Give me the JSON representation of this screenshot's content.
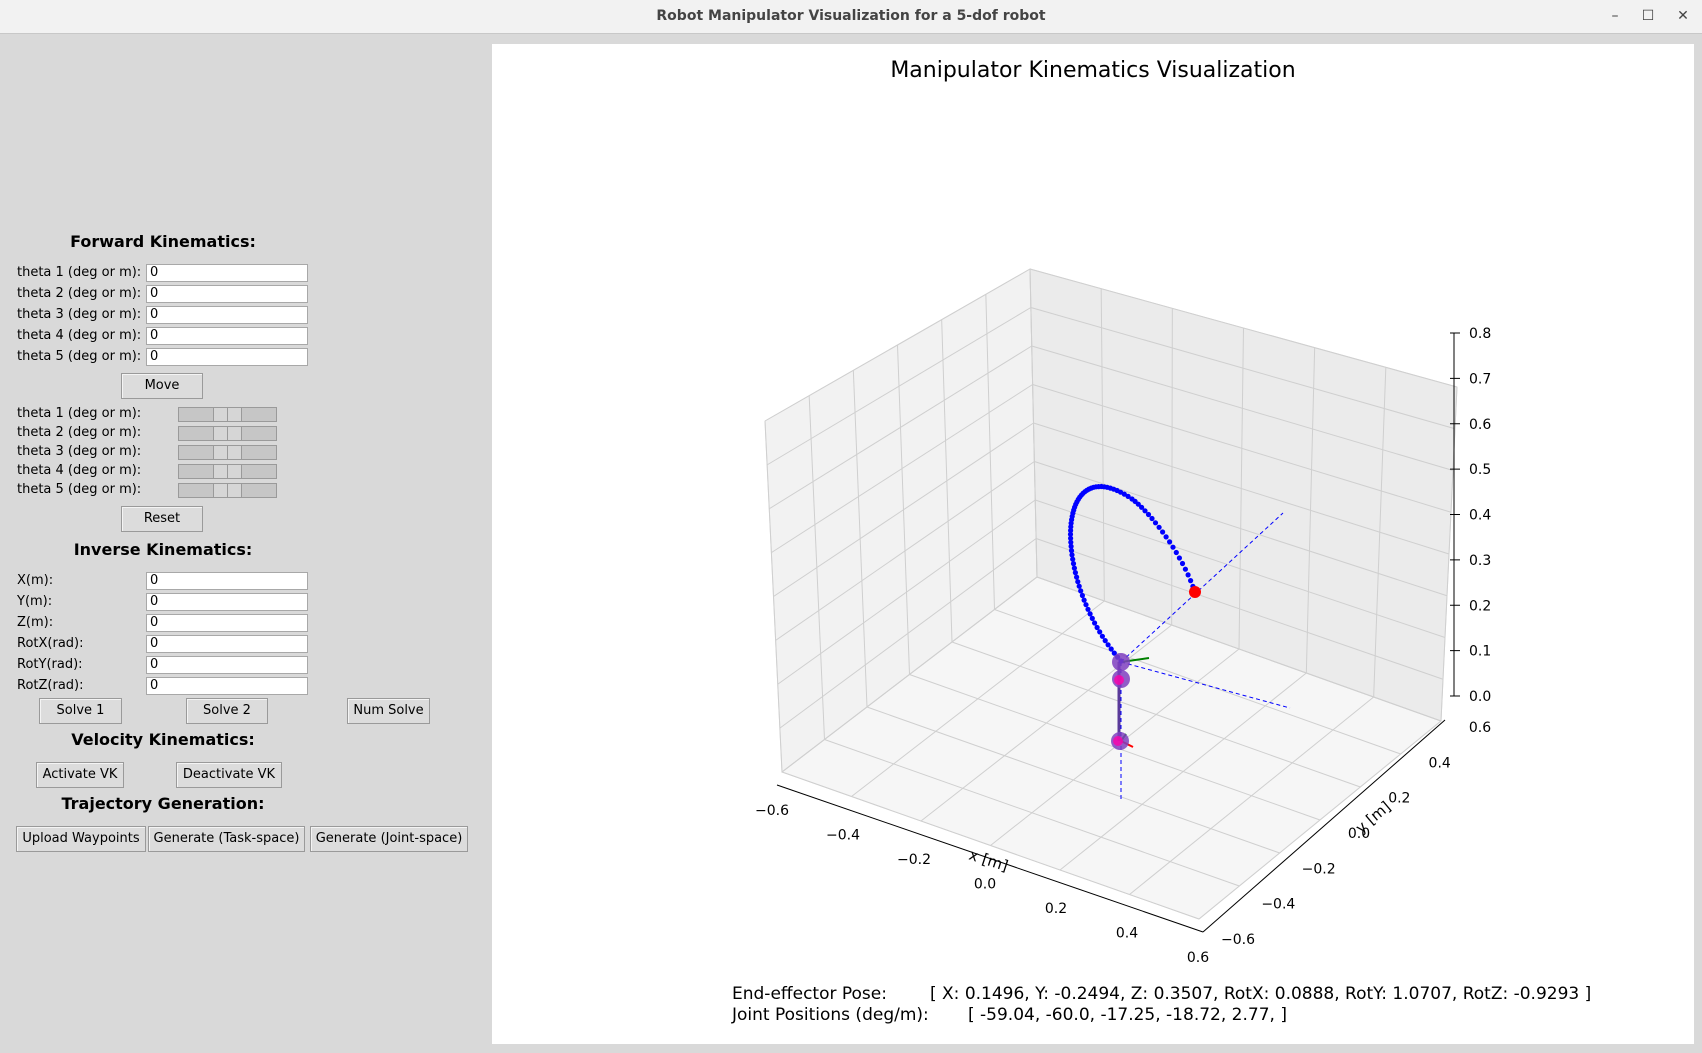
{
  "window": {
    "title": "Robot Manipulator Visualization for a 5-dof robot"
  },
  "fk": {
    "heading": "Forward Kinematics:",
    "labels": [
      "theta 1 (deg or m):",
      "theta 2 (deg or m):",
      "theta 3 (deg or m):",
      "theta 4 (deg or m):",
      "theta 5 (deg or m):"
    ],
    "values": [
      "0",
      "0",
      "0",
      "0",
      "0"
    ],
    "move_label": "Move",
    "slider_labels": [
      "theta 1 (deg or m):",
      "theta 2 (deg or m):",
      "theta 3 (deg or m):",
      "theta 4 (deg or m):",
      "theta 5 (deg or m):"
    ],
    "slider_levels": [
      0.5,
      0.5,
      0.5,
      0.5,
      0.5
    ],
    "reset_label": "Reset"
  },
  "ik": {
    "heading": "Inverse Kinematics:",
    "labels": [
      "X(m):",
      "Y(m):",
      "Z(m):",
      "RotX(rad):",
      "RotY(rad):",
      "RotZ(rad):"
    ],
    "values": [
      "0",
      "0",
      "0",
      "0",
      "0",
      "0"
    ],
    "solve1_label": "Solve 1",
    "solve2_label": "Solve 2",
    "numsolve_label": "Num Solve"
  },
  "vk": {
    "heading": "Velocity Kinematics:",
    "activate_label": "Activate VK",
    "deactivate_label": "Deactivate VK"
  },
  "traj": {
    "heading": "Trajectory Generation:",
    "upload_label": "Upload Waypoints",
    "task_label": "Generate (Task-space)",
    "joint_label": "Generate (Joint-space)"
  },
  "chart_data": {
    "type": "scatter",
    "title": "Manipulator Kinematics Visualization",
    "xlabel": "x [m]",
    "ylabel": "y [m]",
    "zlabel": "",
    "xlim": [
      -0.6,
      0.6
    ],
    "ylim": [
      -0.6,
      0.6
    ],
    "zlim": [
      0.0,
      0.8
    ],
    "x_ticks": [
      "−0.6",
      "−0.4",
      "−0.2",
      "0.0",
      "0.2",
      "0.4",
      "0.6"
    ],
    "y_ticks": [
      "−0.6",
      "−0.4",
      "−0.2",
      "0.0",
      "0.2",
      "0.4",
      "0.6"
    ],
    "z_ticks": [
      "0.0",
      "0.1",
      "0.2",
      "0.3",
      "0.4",
      "0.5",
      "0.6",
      "0.7",
      "0.8"
    ],
    "grid": true,
    "colors": {
      "trajectory": "#0000ff",
      "joint": "#7f3fbf",
      "end_effector": "#ff0000",
      "axis_x": "#ff0000",
      "axis_y": "#008000"
    }
  },
  "readout": {
    "pose_label": "End-effector Pose:",
    "pose_value": "[ X: 0.1496,  Y: -0.2494,  Z: 0.3507,  RotX: 0.0888,  RotY: 1.0707,  RotZ: -0.9293   ]",
    "joint_label": "Joint Positions (deg/m):",
    "joint_value": "[ -59.04,  -60.0,  -17.25,  -18.72,  2.77,  ]"
  }
}
